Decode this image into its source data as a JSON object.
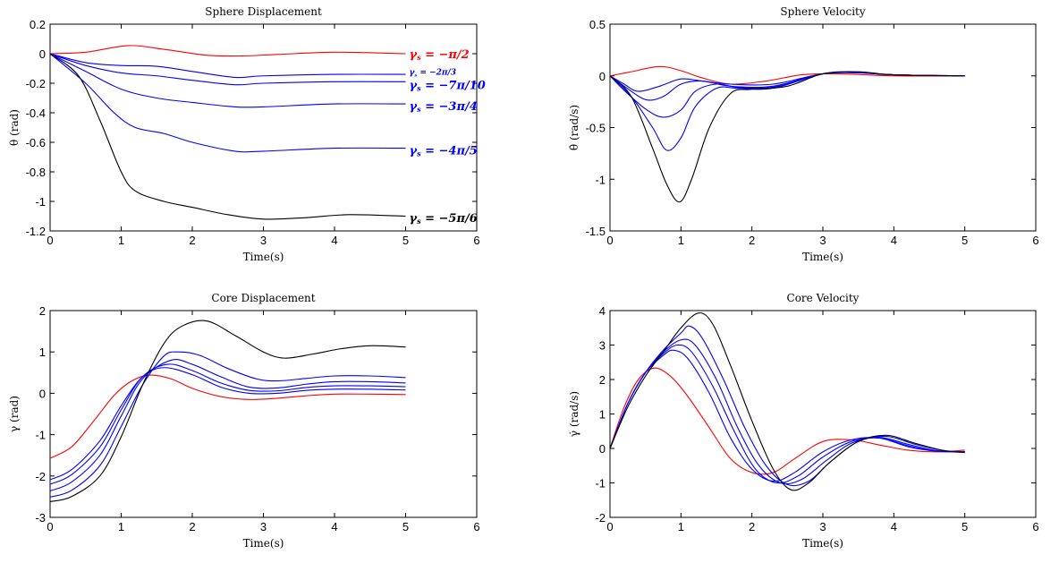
{
  "chart_data": [
    {
      "id": "p0",
      "type": "line",
      "title": "Sphere Displacement",
      "xlabel": "Time(s)",
      "ylabel": "θ (rad)",
      "xlim": [
        0,
        6
      ],
      "ylim": [
        -1.2,
        0.2
      ],
      "xticks": [
        0,
        1,
        2,
        3,
        4,
        5,
        6
      ],
      "xtick_labels": [
        "0",
        "1",
        "2",
        "3",
        "4",
        "5",
        "6"
      ],
      "yticks": [
        0.2,
        0,
        -0.2,
        -0.4,
        -0.6,
        -0.8,
        -1,
        -1.2
      ],
      "ytick_labels": [
        "0.2",
        "0",
        "-0.2",
        "-0.4",
        "-0.6",
        "-0.8",
        "-1",
        "-1.2"
      ],
      "series": [
        {
          "name": "γs = −π/2",
          "color": "#ff0000",
          "x": [
            0,
            0.5,
            1.1,
            1.6,
            2.2,
            2.7,
            3.2,
            4,
            5
          ],
          "y": [
            0,
            0.01,
            0.055,
            0.03,
            -0.01,
            -0.015,
            -0.005,
            0.01,
            0.0
          ]
        },
        {
          "name": "γs = −2π/3",
          "color": "#0000ff",
          "x": [
            0,
            0.5,
            1.0,
            1.5,
            2.0,
            2.6,
            3.0,
            4,
            5
          ],
          "y": [
            0,
            -0.06,
            -0.08,
            -0.085,
            -0.12,
            -0.16,
            -0.15,
            -0.14,
            -0.14
          ]
        },
        {
          "name": "γs = −7π/10",
          "color": "#0000ff",
          "x": [
            0,
            0.5,
            1.0,
            1.5,
            2.0,
            2.6,
            3.0,
            4,
            5
          ],
          "y": [
            0,
            -0.08,
            -0.13,
            -0.15,
            -0.18,
            -0.21,
            -0.2,
            -0.19,
            -0.19
          ]
        },
        {
          "name": "γs = −3π/4",
          "color": "#0000ff",
          "x": [
            0,
            0.5,
            1.0,
            1.5,
            2.0,
            2.6,
            3.0,
            4,
            5
          ],
          "y": [
            0,
            -0.12,
            -0.24,
            -0.3,
            -0.33,
            -0.36,
            -0.36,
            -0.34,
            -0.34
          ]
        },
        {
          "name": "γs = −4π/5",
          "color": "#0000ff",
          "x": [
            0,
            0.5,
            0.9,
            1.2,
            1.6,
            2.0,
            2.6,
            3.0,
            4,
            5
          ],
          "y": [
            0,
            -0.2,
            -0.4,
            -0.5,
            -0.54,
            -0.6,
            -0.66,
            -0.66,
            -0.64,
            -0.64
          ]
        },
        {
          "name": "γs = −5π/6",
          "color": "#000000",
          "x": [
            0,
            0.4,
            0.7,
            1.0,
            1.2,
            1.6,
            2.0,
            2.5,
            3.0,
            3.6,
            4.2,
            5
          ],
          "y": [
            0,
            -0.15,
            -0.45,
            -0.8,
            -0.93,
            -1.0,
            -1.04,
            -1.09,
            -1.12,
            -1.11,
            -1.09,
            -1.1
          ]
        }
      ],
      "annotations": [
        {
          "text": "γs = −π/2",
          "x": 5.05,
          "y": 0.0,
          "color": "#ff0000",
          "size": "large"
        },
        {
          "text": "γs = −2π/3",
          "x": 5.05,
          "y": -0.13,
          "color": "#0000ff",
          "size": "small"
        },
        {
          "text": "γs = −7π/10",
          "x": 5.05,
          "y": -0.21,
          "color": "#0000ff",
          "size": "large"
        },
        {
          "text": "γs = −3π/4",
          "x": 5.05,
          "y": -0.35,
          "color": "#0000ff",
          "size": "large"
        },
        {
          "text": "γs = −4π/5",
          "x": 5.05,
          "y": -0.65,
          "color": "#0000ff",
          "size": "large"
        },
        {
          "text": "γs = −5π/6",
          "x": 5.05,
          "y": -1.11,
          "color": "#000000",
          "size": "large"
        }
      ]
    },
    {
      "id": "p1",
      "type": "line",
      "title": "Sphere Velocity",
      "xlabel": "Time(s)",
      "ylabel": "θ̇ (rad/s)",
      "xlim": [
        0,
        6
      ],
      "ylim": [
        -1.5,
        0.5
      ],
      "xticks": [
        0,
        1,
        2,
        3,
        4,
        5,
        6
      ],
      "xtick_labels": [
        "0",
        "1",
        "2",
        "3",
        "4",
        "5",
        "6"
      ],
      "yticks": [
        0.5,
        0,
        -0.5,
        -1,
        -1.5
      ],
      "ytick_labels": [
        "0.5",
        "0",
        "-0.5",
        "-1",
        "-1.5"
      ],
      "series": [
        {
          "name": "γs = −π/2",
          "color": "#ff0000",
          "x": [
            0,
            0.3,
            0.7,
            1.0,
            1.3,
            1.7,
            2.2,
            2.7,
            3.2,
            4,
            5
          ],
          "y": [
            0,
            0.04,
            0.09,
            0.05,
            -0.02,
            -0.08,
            -0.05,
            0.01,
            0.02,
            0,
            0
          ]
        },
        {
          "name": "γs = −2π/3",
          "color": "#0000ff",
          "x": [
            0,
            0.2,
            0.4,
            0.7,
            1.0,
            1.3,
            1.7,
            2.3,
            3.0,
            3.5,
            4,
            5
          ],
          "y": [
            0,
            -0.08,
            -0.15,
            -0.1,
            -0.03,
            -0.05,
            -0.08,
            -0.08,
            0.02,
            0.03,
            0.01,
            0
          ]
        },
        {
          "name": "γs = −7π/10",
          "color": "#0000ff",
          "x": [
            0,
            0.2,
            0.5,
            0.75,
            1.0,
            1.3,
            1.7,
            2.3,
            3.0,
            3.5,
            4,
            5
          ],
          "y": [
            0,
            -0.1,
            -0.23,
            -0.2,
            -0.08,
            -0.05,
            -0.1,
            -0.1,
            0.02,
            0.03,
            0.01,
            0
          ]
        },
        {
          "name": "γs = −3π/4",
          "color": "#0000ff",
          "x": [
            0,
            0.2,
            0.5,
            0.75,
            1.0,
            1.2,
            1.5,
            1.8,
            2.3,
            3.0,
            3.5,
            4,
            5
          ],
          "y": [
            0,
            -0.14,
            -0.32,
            -0.4,
            -0.33,
            -0.15,
            -0.08,
            -0.11,
            -0.11,
            0.02,
            0.03,
            0.01,
            0
          ]
        },
        {
          "name": "γs = −4π/5",
          "color": "#0000ff",
          "x": [
            0,
            0.3,
            0.6,
            0.8,
            1.0,
            1.2,
            1.5,
            1.8,
            2.3,
            3.0,
            3.5,
            4,
            5
          ],
          "y": [
            0,
            -0.2,
            -0.5,
            -0.72,
            -0.6,
            -0.3,
            -0.12,
            -0.12,
            -0.12,
            0.02,
            0.03,
            0.01,
            0
          ]
        },
        {
          "name": "γs = −5π/6",
          "color": "#000000",
          "x": [
            0,
            0.3,
            0.6,
            0.8,
            0.98,
            1.15,
            1.4,
            1.7,
            2.0,
            2.5,
            3.0,
            3.5,
            4,
            5
          ],
          "y": [
            0,
            -0.2,
            -0.7,
            -1.05,
            -1.22,
            -1.0,
            -0.5,
            -0.17,
            -0.13,
            -0.1,
            0.02,
            0.04,
            0.01,
            0
          ]
        }
      ],
      "annotations": []
    },
    {
      "id": "p2",
      "type": "line",
      "title": "Core Displacement",
      "xlabel": "Time(s)",
      "ylabel": "γ (rad)",
      "xlim": [
        0,
        6
      ],
      "ylim": [
        -3,
        2
      ],
      "xticks": [
        0,
        1,
        2,
        3,
        4,
        5,
        6
      ],
      "xtick_labels": [
        "0",
        "1",
        "2",
        "3",
        "4",
        "5",
        "6"
      ],
      "yticks": [
        2,
        1,
        0,
        -1,
        -2,
        -3
      ],
      "ytick_labels": [
        "2",
        "1",
        "0",
        "-1",
        "-2",
        "-3"
      ],
      "series": [
        {
          "name": "γs = −π/2",
          "color": "#ff0000",
          "x": [
            0,
            0.3,
            0.6,
            0.9,
            1.15,
            1.4,
            1.7,
            2.0,
            2.4,
            2.8,
            3.2,
            3.6,
            4.0,
            4.5,
            5
          ],
          "y": [
            -1.57,
            -1.3,
            -0.7,
            -0.05,
            0.3,
            0.44,
            0.35,
            0.12,
            -0.08,
            -0.15,
            -0.12,
            -0.06,
            -0.02,
            -0.02,
            -0.03
          ]
        },
        {
          "name": "γs = −2π/3",
          "color": "#0000ff",
          "x": [
            0,
            0.3,
            0.7,
            1.0,
            1.3,
            1.6,
            2.0,
            2.4,
            2.8,
            3.2,
            3.6,
            4.0,
            4.5,
            5
          ],
          "y": [
            -2.09,
            -1.85,
            -1.15,
            -0.3,
            0.4,
            0.62,
            0.45,
            0.15,
            0.0,
            0.0,
            0.07,
            0.1,
            0.1,
            0.08
          ]
        },
        {
          "name": "γs = −7π/10",
          "color": "#0000ff",
          "x": [
            0,
            0.3,
            0.7,
            1.0,
            1.3,
            1.65,
            2.0,
            2.4,
            2.8,
            3.2,
            3.6,
            4.0,
            4.5,
            5
          ],
          "y": [
            -2.2,
            -1.97,
            -1.3,
            -0.4,
            0.4,
            0.7,
            0.55,
            0.25,
            0.07,
            0.06,
            0.14,
            0.18,
            0.18,
            0.16
          ]
        },
        {
          "name": "γs = −3π/4",
          "color": "#0000ff",
          "x": [
            0,
            0.3,
            0.7,
            1.0,
            1.3,
            1.7,
            2.0,
            2.4,
            2.8,
            3.2,
            3.6,
            4.0,
            4.5,
            5
          ],
          "y": [
            -2.36,
            -2.15,
            -1.5,
            -0.55,
            0.35,
            0.8,
            0.7,
            0.4,
            0.15,
            0.13,
            0.22,
            0.28,
            0.28,
            0.25
          ]
        },
        {
          "name": "γs = −4π/5",
          "color": "#0000ff",
          "x": [
            0,
            0.3,
            0.7,
            1.0,
            1.3,
            1.6,
            1.8,
            2.1,
            2.5,
            2.9,
            3.2,
            3.6,
            4.0,
            4.5,
            5
          ],
          "y": [
            -2.51,
            -2.35,
            -1.75,
            -0.8,
            0.2,
            0.9,
            1.0,
            0.92,
            0.6,
            0.35,
            0.3,
            0.36,
            0.42,
            0.42,
            0.38
          ]
        },
        {
          "name": "γs = −5π/6",
          "color": "#000000",
          "x": [
            0,
            0.3,
            0.7,
            1.0,
            1.3,
            1.6,
            1.85,
            2.2,
            2.6,
            3.0,
            3.3,
            3.7,
            4.1,
            4.5,
            5
          ],
          "y": [
            -2.62,
            -2.5,
            -2.0,
            -1.05,
            0.2,
            1.2,
            1.62,
            1.75,
            1.4,
            1.0,
            0.85,
            0.95,
            1.08,
            1.15,
            1.12
          ]
        }
      ],
      "annotations": []
    },
    {
      "id": "p3",
      "type": "line",
      "title": "Core Velocity",
      "xlabel": "Time(s)",
      "ylabel": "γ̇ (rad/s)",
      "xlim": [
        0,
        6
      ],
      "ylim": [
        -2,
        4
      ],
      "xticks": [
        0,
        1,
        2,
        3,
        4,
        5,
        6
      ],
      "xtick_labels": [
        "0",
        "1",
        "2",
        "3",
        "4",
        "5",
        "6"
      ],
      "yticks": [
        4,
        3,
        2,
        1,
        0,
        -1,
        -2
      ],
      "ytick_labels": [
        "4",
        "3",
        "2",
        "1",
        "0",
        "-1",
        "-2"
      ],
      "series": [
        {
          "name": "γs = −π/2",
          "color": "#ff0000",
          "x": [
            0,
            0.2,
            0.4,
            0.62,
            0.85,
            1.1,
            1.4,
            1.7,
            2.0,
            2.3,
            2.6,
            3.0,
            3.4,
            3.8,
            4.2,
            4.6,
            5
          ],
          "y": [
            0,
            1.2,
            2.0,
            2.33,
            2.1,
            1.5,
            0.6,
            -0.3,
            -0.7,
            -0.7,
            -0.3,
            0.2,
            0.25,
            0.1,
            -0.05,
            -0.1,
            -0.05
          ]
        },
        {
          "name": "γs = −2π/3",
          "color": "#0000ff",
          "x": [
            0,
            0.25,
            0.5,
            0.75,
            0.9,
            1.1,
            1.4,
            1.7,
            2.0,
            2.3,
            2.6,
            3.0,
            3.4,
            3.8,
            4.2,
            4.6,
            5
          ],
          "y": [
            0,
            1.3,
            2.2,
            2.7,
            2.85,
            2.6,
            1.6,
            0.3,
            -0.6,
            -0.95,
            -0.7,
            -0.1,
            0.25,
            0.3,
            0.05,
            -0.08,
            -0.1
          ]
        },
        {
          "name": "γs = −7π/10",
          "color": "#0000ff",
          "x": [
            0,
            0.25,
            0.5,
            0.75,
            0.95,
            1.15,
            1.45,
            1.75,
            2.05,
            2.35,
            2.65,
            3.0,
            3.4,
            3.8,
            4.2,
            4.6,
            5
          ],
          "y": [
            0,
            1.3,
            2.2,
            2.75,
            3.0,
            2.8,
            1.8,
            0.5,
            -0.6,
            -1.0,
            -0.8,
            -0.25,
            0.2,
            0.3,
            0.08,
            -0.08,
            -0.1
          ]
        },
        {
          "name": "γs = −3π/4",
          "color": "#0000ff",
          "x": [
            0,
            0.25,
            0.5,
            0.75,
            1.0,
            1.2,
            1.5,
            1.8,
            2.1,
            2.4,
            2.7,
            3.05,
            3.4,
            3.8,
            4.2,
            4.6,
            5
          ],
          "y": [
            0,
            1.3,
            2.2,
            2.8,
            3.15,
            3.0,
            2.0,
            0.6,
            -0.5,
            -1.0,
            -0.9,
            -0.35,
            0.15,
            0.32,
            0.12,
            -0.06,
            -0.1
          ]
        },
        {
          "name": "γs = −4π/5",
          "color": "#0000ff",
          "x": [
            0,
            0.25,
            0.5,
            0.75,
            1.0,
            1.12,
            1.3,
            1.6,
            1.9,
            2.2,
            2.5,
            2.8,
            3.1,
            3.5,
            3.9,
            4.3,
            4.7,
            5
          ],
          "y": [
            0,
            1.3,
            2.2,
            2.85,
            3.35,
            3.55,
            3.2,
            2.0,
            0.6,
            -0.5,
            -1.05,
            -0.95,
            -0.4,
            0.2,
            0.35,
            0.12,
            -0.06,
            -0.1
          ]
        },
        {
          "name": "γs = −5π/6",
          "color": "#000000",
          "x": [
            0,
            0.25,
            0.5,
            0.75,
            1.0,
            1.25,
            1.45,
            1.7,
            2.0,
            2.3,
            2.55,
            2.8,
            3.1,
            3.5,
            3.9,
            4.3,
            4.7,
            5
          ],
          "y": [
            0,
            1.2,
            2.1,
            2.8,
            3.5,
            3.93,
            3.6,
            2.4,
            0.8,
            -0.6,
            -1.2,
            -1.0,
            -0.4,
            0.2,
            0.38,
            0.15,
            -0.06,
            -0.12
          ]
        }
      ],
      "annotations": []
    }
  ]
}
